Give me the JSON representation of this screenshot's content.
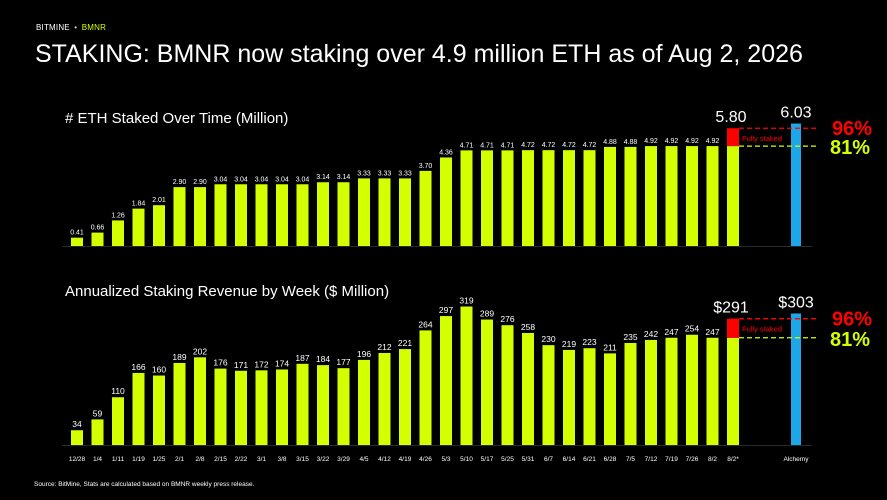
{
  "brand": {
    "company": "BITMINE",
    "separator": "•",
    "ticker": "BMNR"
  },
  "page_title": "STAKING: BMNR now staking over 4.9 million ETH as of Aug 2, 2026",
  "source_note": "Source: BitMine, Stats are calculated based on BMNR weekly press release.",
  "colors": {
    "bar": "#d4ff00",
    "alchemy": "#1ea7e8",
    "fully_staked": "#ff0000",
    "background": "#000000",
    "text": "#ffffff"
  },
  "chart_data": [
    {
      "type": "bar",
      "title": "# ETH Staked Over Time (Million)",
      "categories": [
        "12/28",
        "1/4",
        "1/11",
        "1/19",
        "1/25",
        "2/1",
        "2/8",
        "2/15",
        "2/22",
        "3/1",
        "3/8",
        "3/15",
        "3/22",
        "3/29",
        "4/5",
        "4/12",
        "4/19",
        "4/26",
        "5/3",
        "5/10",
        "5/17",
        "5/25",
        "5/31",
        "6/7",
        "6/14",
        "6/21",
        "6/28",
        "7/5",
        "7/12",
        "7/19",
        "7/26",
        "8/2",
        "8/2*"
      ],
      "values": [
        0.41,
        0.66,
        1.26,
        1.84,
        2.01,
        2.9,
        2.9,
        3.04,
        3.04,
        3.04,
        3.04,
        3.04,
        3.14,
        3.14,
        3.33,
        3.33,
        3.33,
        3.7,
        4.36,
        4.71,
        4.71,
        4.71,
        4.72,
        4.72,
        4.72,
        4.72,
        4.88,
        4.88,
        4.92,
        4.92,
        4.92,
        4.92,
        4.92
      ],
      "labels": [
        "0.41",
        "0.66",
        "1.26",
        "1.84",
        "2.01",
        "2.90",
        "2.90",
        "3.04",
        "3.04",
        "3.04",
        "3.04",
        "3.04",
        "3.14",
        "3.14",
        "3.33",
        "3.33",
        "3.33",
        "3.70",
        "4.36",
        "4.71",
        "4.71",
        "4.71",
        "4.72",
        "4.72",
        "4.72",
        "4.72",
        "4.88",
        "4.88",
        "4.92",
        "4.92",
        "4.92",
        "4.92",
        ""
      ],
      "fully_staked_value": 5.8,
      "fully_staked_label": "5.80",
      "fully_staked_text": "Fully staked",
      "alchemy_category": "Alchemy",
      "alchemy_value": 6.03,
      "alchemy_label": "6.03",
      "pct_high": "96%",
      "pct_low": "81%",
      "ylim": [
        0,
        6.3
      ]
    },
    {
      "type": "bar",
      "title": "Annualized Staking Revenue by Week ($ Million)",
      "categories": [
        "12/28",
        "1/4",
        "1/11",
        "1/19",
        "1/25",
        "2/1",
        "2/8",
        "2/15",
        "2/22",
        "3/1",
        "3/8",
        "3/15",
        "3/22",
        "3/29",
        "4/5",
        "4/12",
        "4/19",
        "4/26",
        "5/3",
        "5/10",
        "5/17",
        "5/25",
        "5/31",
        "6/7",
        "6/14",
        "6/21",
        "6/28",
        "7/5",
        "7/12",
        "7/19",
        "7/26",
        "8/2",
        "8/2*"
      ],
      "values": [
        34,
        59,
        110,
        166,
        160,
        189,
        202,
        176,
        171,
        172,
        174,
        187,
        184,
        177,
        196,
        212,
        221,
        264,
        297,
        319,
        289,
        276,
        258,
        230,
        219,
        223,
        211,
        235,
        242,
        247,
        254,
        247,
        247
      ],
      "labels": [
        "34",
        "59",
        "110",
        "166",
        "160",
        "189",
        "202",
        "176",
        "171",
        "172",
        "174",
        "187",
        "184",
        "177",
        "196",
        "212",
        "221",
        "264",
        "297",
        "319",
        "289",
        "276",
        "258",
        "230",
        "219",
        "223",
        "211",
        "235",
        "242",
        "247",
        "254",
        "247",
        ""
      ],
      "fully_staked_value": 291,
      "fully_staked_label": "$291",
      "fully_staked_text": "Fully staked",
      "alchemy_category": "Alchemy",
      "alchemy_value": 303,
      "alchemy_label": "$303",
      "pct_high": "96%",
      "pct_low": "81%",
      "ylim": [
        0,
        330
      ]
    }
  ]
}
